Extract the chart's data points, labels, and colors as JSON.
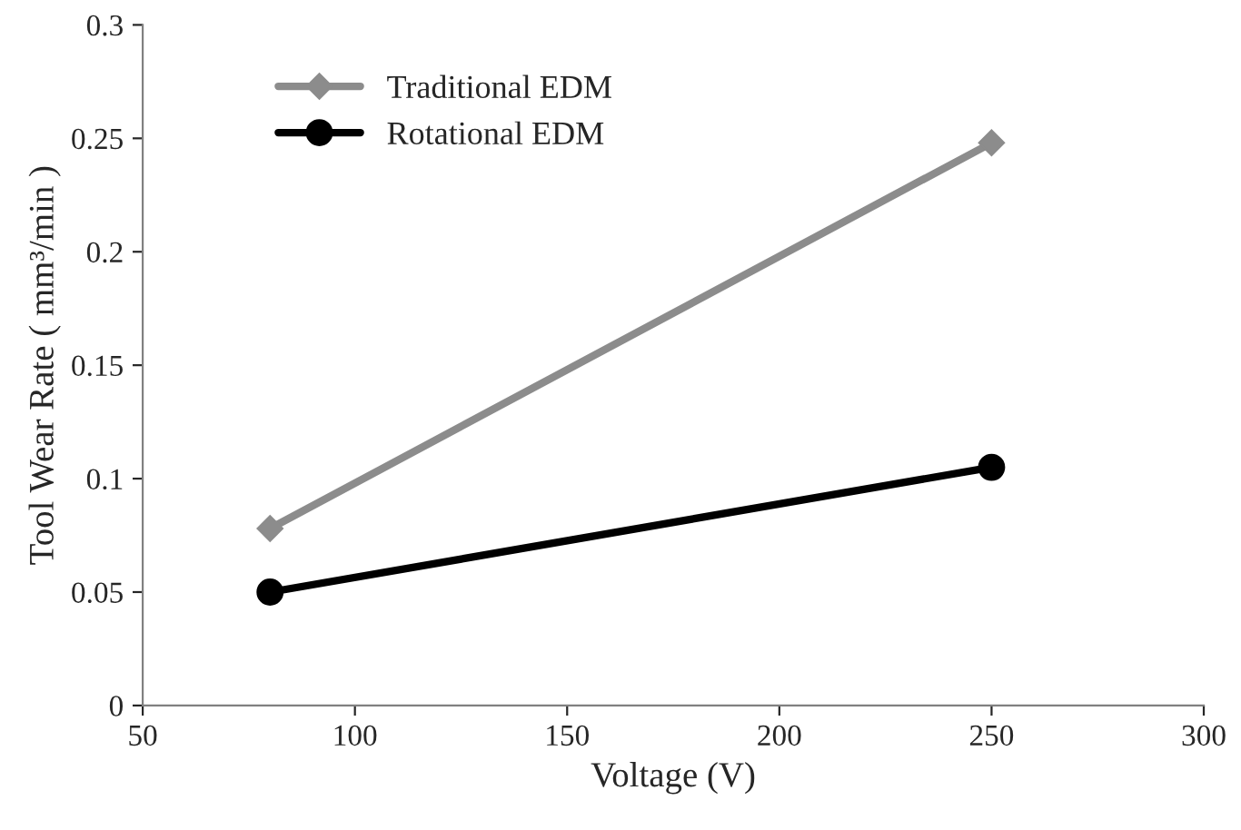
{
  "chart_data": {
    "type": "line",
    "xlabel": "Voltage (V)",
    "ylabel": "Tool Wear Rate ( mm³/min )",
    "x": [
      80,
      250
    ],
    "series": [
      {
        "name": "Traditional EDM",
        "color": "#8c8c8c",
        "values": [
          0.078,
          0.248
        ],
        "marker": "diamond"
      },
      {
        "name": "Rotational EDM",
        "color": "#000000",
        "values": [
          0.05,
          0.105
        ],
        "marker": "circle"
      }
    ],
    "xlim": [
      50,
      300
    ],
    "xticks": [
      50,
      100,
      150,
      200,
      250,
      300
    ],
    "ylim": [
      0,
      0.3
    ],
    "yticks": [
      0,
      0.05,
      0.1,
      0.15,
      0.2,
      0.25,
      0.3
    ],
    "grid": false,
    "legend": "top left",
    "line_style": "solid"
  }
}
